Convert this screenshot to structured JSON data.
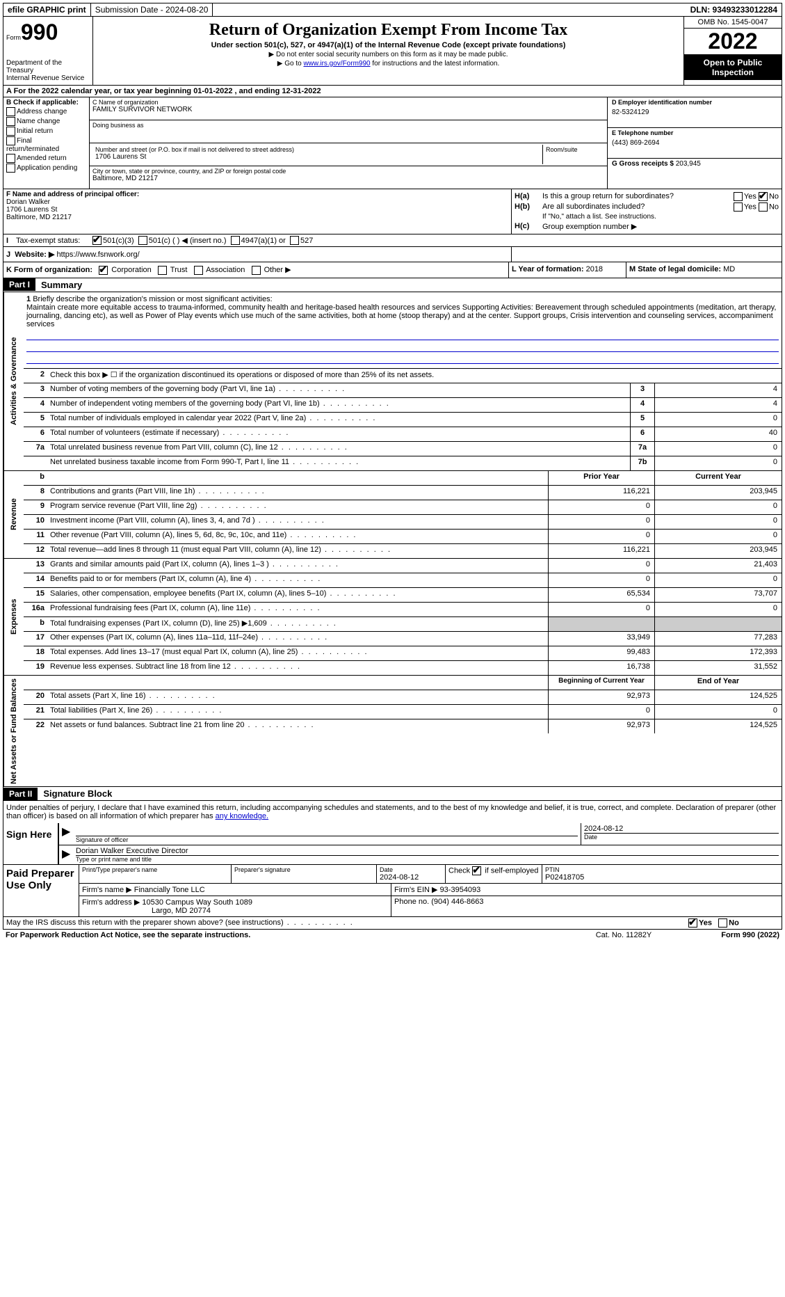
{
  "topbar": {
    "efile": "efile GRAPHIC print",
    "submission": "Submission Date - 2024-08-20",
    "dln": "DLN: 93493233012284"
  },
  "header": {
    "form_label": "Form",
    "form_num": "990",
    "dept": "Department of the Treasury",
    "irs": "Internal Revenue Service",
    "title": "Return of Organization Exempt From Income Tax",
    "sub": "Under section 501(c), 527, or 4947(a)(1) of the Internal Revenue Code (except private foundations)",
    "note1": "▶ Do not enter social security numbers on this form as it may be made public.",
    "note2_pre": "▶ Go to ",
    "note2_link": "www.irs.gov/Form990",
    "note2_post": " for instructions and the latest information.",
    "omb": "OMB No. 1545-0047",
    "year": "2022",
    "open": "Open to Public Inspection"
  },
  "row_a": "A For the 2022 calendar year, or tax year beginning 01-01-2022    , and ending 12-31-2022",
  "section_b": {
    "label": "B Check if applicable:",
    "items": [
      "Address change",
      "Name change",
      "Initial return",
      "Final return/terminated",
      "Amended return",
      "Application pending"
    ]
  },
  "section_c": {
    "name_label": "C Name of organization",
    "name": "FAMILY SURVIVOR NETWORK",
    "dba_label": "Doing business as",
    "street_label": "Number and street (or P.O. box if mail is not delivered to street address)",
    "street": "1706 Laurens St",
    "room_label": "Room/suite",
    "city_label": "City or town, state or province, country, and ZIP or foreign postal code",
    "city": "Baltimore, MD  21217"
  },
  "section_d": {
    "ein_label": "D Employer identification number",
    "ein": "82-5324129",
    "phone_label": "E Telephone number",
    "phone": "(443) 869-2694",
    "gross_label": "G Gross receipts $",
    "gross": "203,945"
  },
  "section_f": {
    "label": "F Name and address of principal officer:",
    "name": "Dorian Walker",
    "street": "1706 Laurens St",
    "city": "Baltimore, MD  21217"
  },
  "section_h": {
    "ha_label": "H(a)",
    "ha_text": "Is this a group return for subordinates?",
    "hb_label": "H(b)",
    "hb_text": "Are all subordinates included?",
    "hb_note": "If \"No,\" attach a list. See instructions.",
    "hc_label": "H(c)",
    "hc_text": "Group exemption number ▶",
    "yes": "Yes",
    "no": "No"
  },
  "row_i": {
    "label": "I",
    "text": "Tax-exempt status:",
    "opt1": "501(c)(3)",
    "opt2": "501(c) (  ) ◀ (insert no.)",
    "opt3": "4947(a)(1) or",
    "opt4": "527"
  },
  "row_j": {
    "label": "J",
    "text": "Website: ▶",
    "url": "https://www.fsnwork.org/"
  },
  "row_k": {
    "label": "K Form of organization:",
    "opts": [
      "Corporation",
      "Trust",
      "Association",
      "Other ▶"
    ],
    "l_label": "L Year of formation:",
    "l_val": "2018",
    "m_label": "M State of legal domicile:",
    "m_val": "MD"
  },
  "part1": {
    "header": "Part I",
    "title": "Summary",
    "line1_label": "1",
    "line1_text": "Briefly describe the organization's mission or most significant activities:",
    "mission": "Maintain create more equitable access to trauma-informed, community health and heritage-based health resources and services Supporting Activities: Bereavement through scheduled appointments (meditation, art therapy, journaling, dancing etc), as well as Power of Play events which use much of the same activities, both at home (stoop therapy) and at the center. Support groups, Crisis intervention and counseling services, accompaniment services",
    "line2": "Check this box ▶ ☐  if the organization discontinued its operations or disposed of more than 25% of its net assets.",
    "side_ag": "Activities & Governance",
    "side_rev": "Revenue",
    "side_exp": "Expenses",
    "side_net": "Net Assets or Fund Balances",
    "rows_ag": [
      {
        "num": "3",
        "desc": "Number of voting members of the governing body (Part VI, line 1a)",
        "box": "3",
        "val": "4"
      },
      {
        "num": "4",
        "desc": "Number of independent voting members of the governing body (Part VI, line 1b)",
        "box": "4",
        "val": "4"
      },
      {
        "num": "5",
        "desc": "Total number of individuals employed in calendar year 2022 (Part V, line 2a)",
        "box": "5",
        "val": "0"
      },
      {
        "num": "6",
        "desc": "Total number of volunteers (estimate if necessary)",
        "box": "6",
        "val": "40"
      },
      {
        "num": "7a",
        "desc": "Total unrelated business revenue from Part VIII, column (C), line 12",
        "box": "7a",
        "val": "0"
      },
      {
        "num": "",
        "desc": "Net unrelated business taxable income from Form 990-T, Part I, line 11",
        "box": "7b",
        "val": "0"
      }
    ],
    "col_prior": "Prior Year",
    "col_current": "Current Year",
    "rows_rev": [
      {
        "num": "8",
        "desc": "Contributions and grants (Part VIII, line 1h)",
        "prior": "116,221",
        "curr": "203,945"
      },
      {
        "num": "9",
        "desc": "Program service revenue (Part VIII, line 2g)",
        "prior": "0",
        "curr": "0"
      },
      {
        "num": "10",
        "desc": "Investment income (Part VIII, column (A), lines 3, 4, and 7d )",
        "prior": "0",
        "curr": "0"
      },
      {
        "num": "11",
        "desc": "Other revenue (Part VIII, column (A), lines 5, 6d, 8c, 9c, 10c, and 11e)",
        "prior": "0",
        "curr": "0"
      },
      {
        "num": "12",
        "desc": "Total revenue—add lines 8 through 11 (must equal Part VIII, column (A), line 12)",
        "prior": "116,221",
        "curr": "203,945"
      }
    ],
    "rows_exp": [
      {
        "num": "13",
        "desc": "Grants and similar amounts paid (Part IX, column (A), lines 1–3 )",
        "prior": "0",
        "curr": "21,403"
      },
      {
        "num": "14",
        "desc": "Benefits paid to or for members (Part IX, column (A), line 4)",
        "prior": "0",
        "curr": "0"
      },
      {
        "num": "15",
        "desc": "Salaries, other compensation, employee benefits (Part IX, column (A), lines 5–10)",
        "prior": "65,534",
        "curr": "73,707"
      },
      {
        "num": "16a",
        "desc": "Professional fundraising fees (Part IX, column (A), line 11e)",
        "prior": "0",
        "curr": "0"
      },
      {
        "num": "b",
        "desc": "Total fundraising expenses (Part IX, column (D), line 25) ▶1,609",
        "prior": "",
        "curr": "",
        "grey": true
      },
      {
        "num": "17",
        "desc": "Other expenses (Part IX, column (A), lines 11a–11d, 11f–24e)",
        "prior": "33,949",
        "curr": "77,283"
      },
      {
        "num": "18",
        "desc": "Total expenses. Add lines 13–17 (must equal Part IX, column (A), line 25)",
        "prior": "99,483",
        "curr": "172,393"
      },
      {
        "num": "19",
        "desc": "Revenue less expenses. Subtract line 18 from line 12",
        "prior": "16,738",
        "curr": "31,552"
      }
    ],
    "col_begin": "Beginning of Current Year",
    "col_end": "End of Year",
    "rows_net": [
      {
        "num": "20",
        "desc": "Total assets (Part X, line 16)",
        "prior": "92,973",
        "curr": "124,525"
      },
      {
        "num": "21",
        "desc": "Total liabilities (Part X, line 26)",
        "prior": "0",
        "curr": "0"
      },
      {
        "num": "22",
        "desc": "Net assets or fund balances. Subtract line 21 from line 20",
        "prior": "92,973",
        "curr": "124,525"
      }
    ]
  },
  "part2": {
    "header": "Part II",
    "title": "Signature Block",
    "text_pre": "Under penalties of perjury, I declare that I have examined this return, including accompanying schedules and statements, and to the best of my knowledge and belief, it is true, correct, and complete. Declaration of preparer (other than officer) is based on all information of which preparer has ",
    "text_link": "any knowledge.",
    "sign_here": "Sign Here",
    "sig_officer": "Signature of officer",
    "sig_date": "2024-08-12",
    "date_label": "Date",
    "sig_name": "Dorian Walker  Executive Director",
    "type_label": "Type or print name and title",
    "paid": "Paid Preparer Use Only",
    "prep_name_label": "Print/Type preparer's name",
    "prep_sig_label": "Preparer's signature",
    "prep_date": "2024-08-12",
    "check_label": "Check",
    "self_emp": "if self-employed",
    "ptin_label": "PTIN",
    "ptin": "P02418705",
    "firm_name_label": "Firm's name    ▶",
    "firm_name": "Financially Tone LLC",
    "firm_ein_label": "Firm's EIN ▶",
    "firm_ein": "93-3954093",
    "firm_addr_label": "Firm's address ▶",
    "firm_addr1": "10530 Campus Way South 1089",
    "firm_addr2": "Largo, MD  20774",
    "phone_label": "Phone no.",
    "phone": "(904) 446-8663",
    "may_irs": "May the IRS discuss this return with the preparer shown above? (see instructions)",
    "yes": "Yes",
    "no": "No"
  },
  "footer": {
    "paperwork": "For Paperwork Reduction Act Notice, see the separate instructions.",
    "cat": "Cat. No. 11282Y",
    "form": "Form 990 (2022)"
  }
}
